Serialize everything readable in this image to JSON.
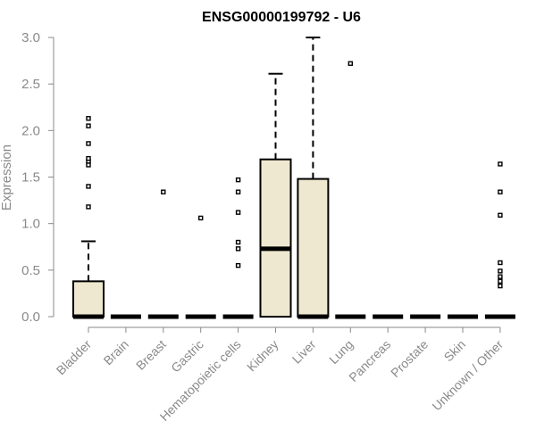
{
  "chart_data": {
    "type": "boxplot",
    "title": "ENSG00000199792 - U6",
    "ylabel": "Expression",
    "xlabel": "",
    "ylim": [
      0,
      3.0
    ],
    "yticks": [
      "0.0",
      "0.5",
      "1.0",
      "1.5",
      "2.0",
      "2.5",
      "3.0"
    ],
    "grid": false,
    "categories": [
      "Bladder",
      "Brain",
      "Breast",
      "Gastric",
      "Hematopoietic cells",
      "Kidney",
      "Liver",
      "Lung",
      "Pancreas",
      "Prostate",
      "Skin",
      "Unknown / Other"
    ],
    "box_fill": "#eee8d0",
    "series": [
      {
        "q1": 0,
        "median": 0,
        "q3": 0.38,
        "whisker_low": 0,
        "whisker_high": 0.81,
        "outliers": [
          1.18,
          1.4,
          1.63,
          1.67,
          1.7,
          1.86,
          2.05,
          2.13
        ]
      },
      {
        "q1": 0,
        "median": 0,
        "q3": 0,
        "whisker_low": 0,
        "whisker_high": 0,
        "outliers": []
      },
      {
        "q1": 0,
        "median": 0,
        "q3": 0,
        "whisker_low": 0,
        "whisker_high": 0,
        "outliers": [
          1.34
        ]
      },
      {
        "q1": 0,
        "median": 0,
        "q3": 0,
        "whisker_low": 0,
        "whisker_high": 0,
        "outliers": [
          1.06
        ]
      },
      {
        "q1": 0,
        "median": 0,
        "q3": 0,
        "whisker_low": 0,
        "whisker_high": 0,
        "outliers": [
          0.55,
          0.73,
          0.8,
          1.12,
          1.34,
          1.47
        ]
      },
      {
        "q1": 0,
        "median": 0.73,
        "q3": 1.69,
        "whisker_low": 0,
        "whisker_high": 2.61,
        "outliers": []
      },
      {
        "q1": 0,
        "median": 0,
        "q3": 1.48,
        "whisker_low": 0,
        "whisker_high": 3.0,
        "outliers": []
      },
      {
        "q1": 0,
        "median": 0,
        "q3": 0,
        "whisker_low": 0,
        "whisker_high": 0,
        "outliers": [
          2.72
        ]
      },
      {
        "q1": 0,
        "median": 0,
        "q3": 0,
        "whisker_low": 0,
        "whisker_high": 0,
        "outliers": []
      },
      {
        "q1": 0,
        "median": 0,
        "q3": 0,
        "whisker_low": 0,
        "whisker_high": 0,
        "outliers": []
      },
      {
        "q1": 0,
        "median": 0,
        "q3": 0,
        "whisker_low": 0,
        "whisker_high": 0,
        "outliers": []
      },
      {
        "q1": 0,
        "median": 0,
        "q3": 0,
        "whisker_low": 0,
        "whisker_high": 0,
        "outliers": [
          0.33,
          0.38,
          0.43,
          0.49,
          0.58,
          1.09,
          1.34,
          1.64
        ]
      }
    ]
  }
}
